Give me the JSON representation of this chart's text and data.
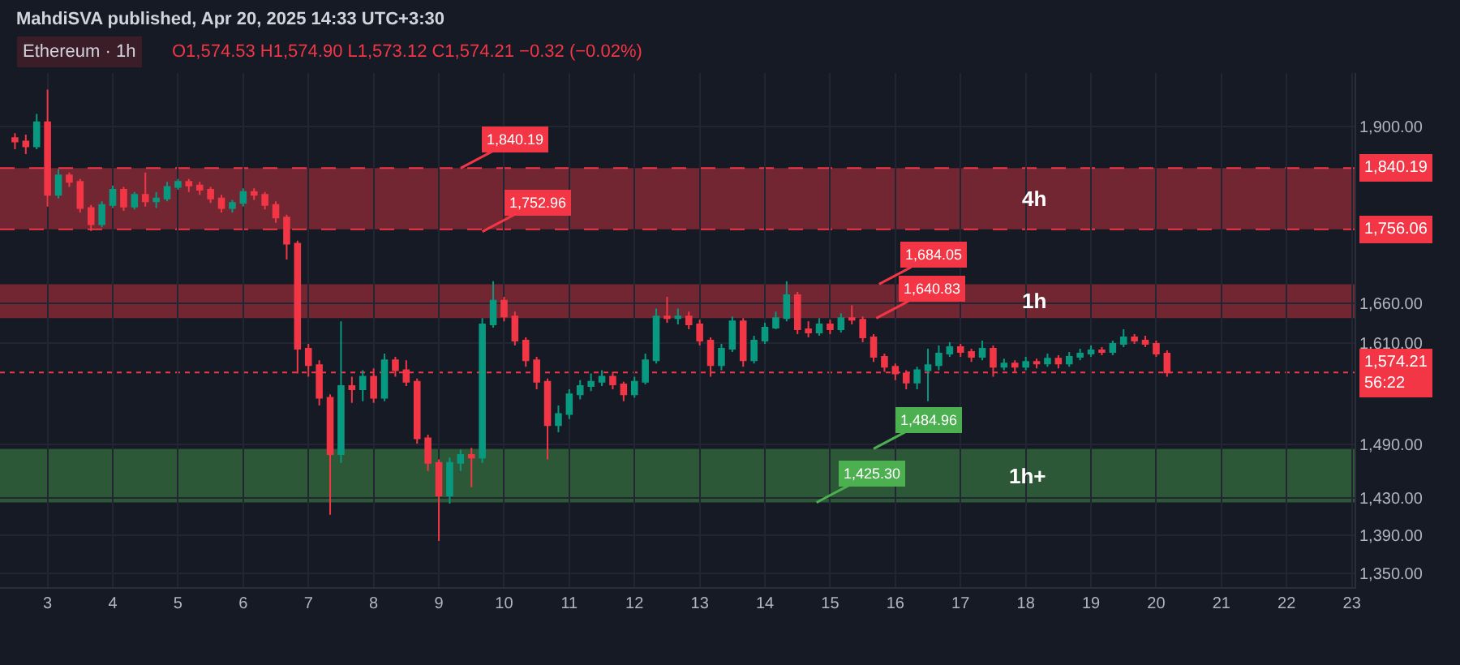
{
  "chart_data": {
    "type": "candlestick",
    "title": "Ethereum · 1h",
    "annotations": [
      "MahdiSVA published, Apr 20, 2025 14:33 UTC+3:30",
      "O1,574.53 H1,574.90 L1,573.12 C1,574.21 −0.32 (−0.02%)",
      {
        "text": "1,840.19",
        "x": "2025-04-09T08:00",
        "y": 1840.19
      },
      {
        "text": "1,752.96",
        "x": "2025-04-09T16:00",
        "y": 1752.96
      },
      {
        "text": "1,684.05",
        "x": "2025-04-15T18:00",
        "y": 1684.05
      },
      {
        "text": "1,640.83",
        "x": "2025-04-15T17:00",
        "y": 1640.83
      },
      {
        "text": "1,484.96",
        "x": "2025-04-15T16:00",
        "y": 1484.96
      },
      {
        "text": "1,425.30",
        "x": "2025-04-14T19:00",
        "y": 1425.3
      }
    ],
    "x": [
      "2025-04-02T12:00",
      "2025-04-02T16:00",
      "2025-04-02T20:00",
      "2025-04-03T00:00",
      "2025-04-03T04:00",
      "2025-04-03T08:00",
      "2025-04-03T12:00",
      "2025-04-03T16:00",
      "2025-04-03T20:00",
      "2025-04-04T00:00",
      "2025-04-04T04:00",
      "2025-04-04T08:00",
      "2025-04-04T12:00",
      "2025-04-04T16:00",
      "2025-04-04T20:00",
      "2025-04-05T00:00",
      "2025-04-05T04:00",
      "2025-04-05T08:00",
      "2025-04-05T12:00",
      "2025-04-05T16:00",
      "2025-04-05T20:00",
      "2025-04-06T00:00",
      "2025-04-06T04:00",
      "2025-04-06T08:00",
      "2025-04-06T12:00",
      "2025-04-06T16:00",
      "2025-04-06T20:00",
      "2025-04-07T00:00",
      "2025-04-07T04:00",
      "2025-04-07T08:00",
      "2025-04-07T12:00",
      "2025-04-07T16:00",
      "2025-04-07T20:00",
      "2025-04-08T00:00",
      "2025-04-08T04:00",
      "2025-04-08T08:00",
      "2025-04-08T12:00",
      "2025-04-08T16:00",
      "2025-04-08T20:00",
      "2025-04-09T00:00",
      "2025-04-09T04:00",
      "2025-04-09T08:00",
      "2025-04-09T12:00",
      "2025-04-09T16:00",
      "2025-04-09T20:00",
      "2025-04-10T00:00",
      "2025-04-10T04:00",
      "2025-04-10T08:00",
      "2025-04-10T12:00",
      "2025-04-10T16:00",
      "2025-04-10T20:00",
      "2025-04-11T00:00",
      "2025-04-11T04:00",
      "2025-04-11T08:00",
      "2025-04-11T12:00",
      "2025-04-11T16:00",
      "2025-04-11T20:00",
      "2025-04-12T00:00",
      "2025-04-12T04:00",
      "2025-04-12T08:00",
      "2025-04-12T12:00",
      "2025-04-12T16:00",
      "2025-04-12T20:00",
      "2025-04-13T00:00",
      "2025-04-13T04:00",
      "2025-04-13T08:00",
      "2025-04-13T12:00",
      "2025-04-13T16:00",
      "2025-04-13T20:00",
      "2025-04-14T00:00",
      "2025-04-14T04:00",
      "2025-04-14T08:00",
      "2025-04-14T12:00",
      "2025-04-14T16:00",
      "2025-04-14T20:00",
      "2025-04-15T00:00",
      "2025-04-15T04:00",
      "2025-04-15T08:00",
      "2025-04-15T12:00",
      "2025-04-15T16:00",
      "2025-04-15T20:00",
      "2025-04-16T00:00",
      "2025-04-16T04:00",
      "2025-04-16T08:00",
      "2025-04-16T12:00",
      "2025-04-16T16:00",
      "2025-04-16T20:00",
      "2025-04-17T00:00",
      "2025-04-17T04:00",
      "2025-04-17T08:00",
      "2025-04-17T12:00",
      "2025-04-17T16:00",
      "2025-04-17T20:00",
      "2025-04-18T00:00",
      "2025-04-18T04:00",
      "2025-04-18T08:00",
      "2025-04-18T12:00",
      "2025-04-18T16:00",
      "2025-04-18T20:00",
      "2025-04-19T00:00",
      "2025-04-19T04:00",
      "2025-04-19T08:00",
      "2025-04-19T12:00",
      "2025-04-19T16:00",
      "2025-04-19T20:00",
      "2025-04-20T00:00",
      "2025-04-20T04:00"
    ],
    "ohlc": [
      [
        1883,
        1890,
        1867,
        1878
      ],
      [
        1878,
        1888,
        1860,
        1871
      ],
      [
        1871,
        1918,
        1867,
        1906
      ],
      [
        1906,
        1954,
        1787,
        1803
      ],
      [
        1803,
        1839,
        1798,
        1830
      ],
      [
        1830,
        1834,
        1814,
        1821
      ],
      [
        1821,
        1825,
        1779,
        1785
      ],
      [
        1785,
        1789,
        1754,
        1763
      ],
      [
        1763,
        1794,
        1759,
        1789
      ],
      [
        1789,
        1816,
        1785,
        1810
      ],
      [
        1810,
        1814,
        1781,
        1787
      ],
      [
        1787,
        1807,
        1783,
        1803
      ],
      [
        1803,
        1834,
        1787,
        1794
      ],
      [
        1794,
        1807,
        1785,
        1798
      ],
      [
        1798,
        1821,
        1794,
        1814
      ],
      [
        1814,
        1825,
        1810,
        1821
      ],
      [
        1821,
        1825,
        1807,
        1816
      ],
      [
        1816,
        1821,
        1803,
        1810
      ],
      [
        1810,
        1814,
        1792,
        1798
      ],
      [
        1798,
        1803,
        1779,
        1785
      ],
      [
        1785,
        1796,
        1779,
        1792
      ],
      [
        1792,
        1812,
        1787,
        1807
      ],
      [
        1807,
        1812,
        1796,
        1803
      ],
      [
        1803,
        1807,
        1783,
        1789
      ],
      [
        1789,
        1794,
        1765,
        1772
      ],
      [
        1772,
        1776,
        1716,
        1737
      ],
      [
        1737,
        1741,
        1573,
        1603
      ],
      [
        1603,
        1609,
        1569,
        1583
      ],
      [
        1583,
        1589,
        1535,
        1544
      ],
      [
        1544,
        1548,
        1412,
        1479
      ],
      [
        1479,
        1637,
        1469,
        1558
      ],
      [
        1558,
        1569,
        1538,
        1554
      ],
      [
        1554,
        1577,
        1540,
        1569
      ],
      [
        1569,
        1579,
        1538,
        1544
      ],
      [
        1544,
        1597,
        1540,
        1589
      ],
      [
        1589,
        1593,
        1569,
        1577
      ],
      [
        1577,
        1589,
        1558,
        1563
      ],
      [
        1563,
        1567,
        1491,
        1497
      ],
      [
        1497,
        1501,
        1460,
        1469
      ],
      [
        1469,
        1473,
        1384,
        1433
      ],
      [
        1433,
        1475,
        1424,
        1469
      ],
      [
        1469,
        1484,
        1460,
        1478
      ],
      [
        1478,
        1486,
        1442,
        1475
      ],
      [
        1475,
        1641,
        1469,
        1633
      ],
      [
        1633,
        1688,
        1629,
        1663
      ],
      [
        1663,
        1668,
        1637,
        1643
      ],
      [
        1643,
        1649,
        1607,
        1613
      ],
      [
        1613,
        1617,
        1581,
        1589
      ],
      [
        1589,
        1593,
        1554,
        1563
      ],
      [
        1563,
        1567,
        1473,
        1512
      ],
      [
        1512,
        1535,
        1504,
        1525
      ],
      [
        1525,
        1554,
        1519,
        1548
      ],
      [
        1548,
        1565,
        1542,
        1558
      ],
      [
        1558,
        1573,
        1552,
        1563
      ],
      [
        1563,
        1577,
        1558,
        1569
      ],
      [
        1569,
        1575,
        1554,
        1560
      ],
      [
        1560,
        1563,
        1540,
        1548
      ],
      [
        1548,
        1569,
        1544,
        1563
      ],
      [
        1563,
        1597,
        1560,
        1589
      ],
      [
        1589,
        1653,
        1585,
        1643
      ],
      [
        1643,
        1668,
        1635,
        1641
      ],
      [
        1641,
        1653,
        1633,
        1643
      ],
      [
        1643,
        1649,
        1627,
        1633
      ],
      [
        1633,
        1639,
        1607,
        1613
      ],
      [
        1613,
        1617,
        1569,
        1583
      ],
      [
        1583,
        1609,
        1577,
        1603
      ],
      [
        1603,
        1643,
        1599,
        1637
      ],
      [
        1637,
        1641,
        1581,
        1589
      ],
      [
        1589,
        1619,
        1585,
        1613
      ],
      [
        1613,
        1635,
        1609,
        1629
      ],
      [
        1629,
        1649,
        1627,
        1641
      ],
      [
        1641,
        1688,
        1637,
        1670
      ],
      [
        1670,
        1674,
        1621,
        1627
      ],
      [
        1627,
        1637,
        1617,
        1623
      ],
      [
        1623,
        1641,
        1619,
        1633
      ],
      [
        1633,
        1639,
        1621,
        1627
      ],
      [
        1627,
        1647,
        1623,
        1641
      ],
      [
        1641,
        1657,
        1633,
        1639
      ],
      [
        1639,
        1643,
        1611,
        1617
      ],
      [
        1617,
        1621,
        1587,
        1593
      ],
      [
        1593,
        1597,
        1575,
        1581
      ],
      [
        1581,
        1585,
        1565,
        1573
      ],
      [
        1573,
        1577,
        1554,
        1562
      ],
      [
        1562,
        1581,
        1554,
        1577
      ],
      [
        1577,
        1603,
        1540,
        1583
      ],
      [
        1583,
        1607,
        1577,
        1597
      ],
      [
        1597,
        1611,
        1593,
        1605
      ],
      [
        1605,
        1609,
        1593,
        1599
      ],
      [
        1599,
        1603,
        1587,
        1593
      ],
      [
        1593,
        1613,
        1589,
        1603
      ],
      [
        1603,
        1607,
        1569,
        1581
      ],
      [
        1581,
        1591,
        1577,
        1585
      ],
      [
        1585,
        1589,
        1575,
        1581
      ],
      [
        1581,
        1593,
        1577,
        1587
      ],
      [
        1587,
        1591,
        1579,
        1585
      ],
      [
        1585,
        1597,
        1581,
        1591
      ],
      [
        1591,
        1595,
        1579,
        1585
      ],
      [
        1585,
        1599,
        1581,
        1593
      ],
      [
        1593,
        1603,
        1589,
        1597
      ],
      [
        1597,
        1607,
        1593,
        1601
      ],
      [
        1601,
        1605,
        1595,
        1599
      ],
      [
        1599,
        1613,
        1595,
        1609
      ],
      [
        1609,
        1627,
        1605,
        1617
      ],
      [
        1617,
        1621,
        1609,
        1613
      ],
      [
        1613,
        1619,
        1605,
        1609
      ],
      [
        1609,
        1613,
        1593,
        1597
      ],
      [
        1597,
        1601,
        1569,
        1574.21
      ]
    ],
    "colors": [
      "#f23645",
      "#f23645",
      "#089981",
      "#f23645",
      "#089981",
      "#f23645",
      "#f23645",
      "#f23645",
      "#089981",
      "#089981",
      "#f23645",
      "#089981",
      "#f23645",
      "#089981",
      "#089981",
      "#089981",
      "#f23645",
      "#f23645",
      "#f23645",
      "#f23645",
      "#089981",
      "#089981",
      "#f23645",
      "#f23645",
      "#f23645",
      "#f23645",
      "#f23645",
      "#f23645",
      "#f23645",
      "#f23645",
      "#089981",
      "#f23645",
      "#089981",
      "#f23645",
      "#089981",
      "#f23645",
      "#f23645",
      "#f23645",
      "#f23645",
      "#f23645",
      "#089981",
      "#089981",
      "#f23645",
      "#089981",
      "#089981",
      "#f23645",
      "#f23645",
      "#f23645",
      "#f23645",
      "#f23645",
      "#089981",
      "#089981",
      "#089981",
      "#089981",
      "#089981",
      "#f23645",
      "#f23645",
      "#089981",
      "#089981",
      "#089981",
      "#f23645",
      "#089981",
      "#f23645",
      "#f23645",
      "#f23645",
      "#089981",
      "#089981",
      "#f23645",
      "#089981",
      "#089981",
      "#089981",
      "#089981",
      "#f23645",
      "#f23645",
      "#089981",
      "#f23645",
      "#089981",
      "#f23645",
      "#f23645",
      "#f23645",
      "#f23645",
      "#f23645",
      "#f23645",
      "#089981",
      "#089981",
      "#089981",
      "#089981",
      "#f23645",
      "#f23645",
      "#089981",
      "#f23645",
      "#089981",
      "#f23645",
      "#089981",
      "#f23645",
      "#089981",
      "#f23645",
      "#089981",
      "#089981",
      "#089981",
      "#f23645",
      "#089981",
      "#089981",
      "#f23645",
      "#f23645",
      "#f23645",
      "#f23645"
    ],
    "xlim": [
      "2025-04-02T06:30",
      "2025-04-23T01:00"
    ],
    "xticks": [
      {
        "value": "2025-04-03",
        "label": "3"
      },
      {
        "value": "2025-04-04",
        "label": "4"
      },
      {
        "value": "2025-04-05",
        "label": "5"
      },
      {
        "value": "2025-04-06",
        "label": "6"
      },
      {
        "value": "2025-04-07",
        "label": "7"
      },
      {
        "value": "2025-04-08",
        "label": "8"
      },
      {
        "value": "2025-04-09",
        "label": "9"
      },
      {
        "value": "2025-04-10",
        "label": "10"
      },
      {
        "value": "2025-04-11",
        "label": "11"
      },
      {
        "value": "2025-04-12",
        "label": "12"
      },
      {
        "value": "2025-04-13",
        "label": "13"
      },
      {
        "value": "2025-04-14",
        "label": "14"
      },
      {
        "value": "2025-04-15",
        "label": "15"
      },
      {
        "value": "2025-04-16",
        "label": "16"
      },
      {
        "value": "2025-04-17",
        "label": "17"
      },
      {
        "value": "2025-04-18",
        "label": "18"
      },
      {
        "value": "2025-04-19",
        "label": "19"
      },
      {
        "value": "2025-04-20",
        "label": "20"
      },
      {
        "value": "2025-04-21",
        "label": "21"
      },
      {
        "value": "2025-04-22",
        "label": "22"
      },
      {
        "value": "2025-04-23",
        "label": "23"
      }
    ],
    "ylim": [
      1336,
      1979
    ],
    "yticks": [
      {
        "value": 1350,
        "label": "1,350.00"
      },
      {
        "value": 1390,
        "label": "1,390.00"
      },
      {
        "value": 1430,
        "label": "1,430.00"
      },
      {
        "value": 1490,
        "label": "1,490.00"
      },
      {
        "value": 1610,
        "label": "1,610.00"
      },
      {
        "value": 1660,
        "label": "1,660.00"
      },
      {
        "value": 1900,
        "label": "1,900.00"
      }
    ],
    "log": "y",
    "grid": true,
    "bands": [
      {
        "axis": "y",
        "from": 1756.06,
        "to": 1840.19,
        "label": "4h",
        "color": "#f23645"
      },
      {
        "axis": "y",
        "from": 1640.83,
        "to": 1684.05,
        "label": "1h",
        "color": "#f23645"
      },
      {
        "axis": "y",
        "from": 1425.3,
        "to": 1484.96,
        "label": "1h+",
        "color": "#4caf50"
      }
    ],
    "ref_lines": [
      {
        "axis": "y",
        "value": 1840.19,
        "label": "1,840.19",
        "color": "#f23645",
        "line_style": "dashed"
      },
      {
        "axis": "y",
        "value": 1756.06,
        "label": "1,756.06",
        "color": "#f23645",
        "line_style": "dashed"
      },
      {
        "axis": "y",
        "value": 1574.21,
        "label": "1,574.21\n56:22",
        "color": "#f23645",
        "line_style": "dotted"
      }
    ]
  }
}
